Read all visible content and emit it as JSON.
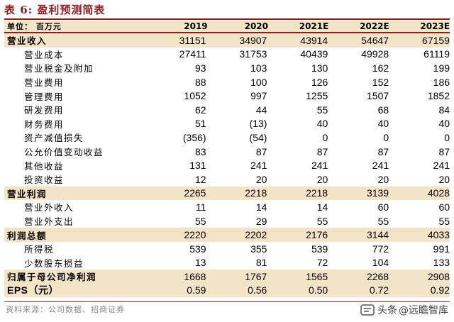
{
  "title": "表 6:  盈利预测简表",
  "header": {
    "unit_label": "单位：  百万元",
    "years": [
      "2019",
      "2020",
      "2021E",
      "2022E",
      "2023E"
    ]
  },
  "rows": [
    {
      "label": "营业收入",
      "type": "main",
      "highlight": true,
      "values": [
        "31151",
        "34907",
        "43914",
        "54647",
        "67159"
      ]
    },
    {
      "label": "营业成本",
      "type": "sub",
      "highlight": false,
      "values": [
        "27411",
        "31753",
        "40439",
        "49928",
        "61119"
      ]
    },
    {
      "label": "营业税金及附加",
      "type": "sub",
      "highlight": false,
      "values": [
        "93",
        "103",
        "130",
        "162",
        "199"
      ]
    },
    {
      "label": "营业费用",
      "type": "sub",
      "highlight": false,
      "values": [
        "88",
        "100",
        "126",
        "152",
        "186"
      ]
    },
    {
      "label": "管理费用",
      "type": "sub",
      "highlight": false,
      "values": [
        "1052",
        "997",
        "1255",
        "1507",
        "1852"
      ]
    },
    {
      "label": "研发费用",
      "type": "sub",
      "highlight": false,
      "values": [
        "62",
        "44",
        "55",
        "68",
        "84"
      ]
    },
    {
      "label": "财务费用",
      "type": "sub",
      "highlight": false,
      "values": [
        "51",
        "(13)",
        "40",
        "40",
        "40"
      ]
    },
    {
      "label": "资产减值损失",
      "type": "sub",
      "highlight": false,
      "values": [
        "(356)",
        "(54)",
        "0",
        "0",
        "0"
      ]
    },
    {
      "label": "公允价值变动收益",
      "type": "sub",
      "highlight": false,
      "values": [
        "83",
        "87",
        "87",
        "87",
        "87"
      ]
    },
    {
      "label": "其他收益",
      "type": "sub",
      "highlight": false,
      "values": [
        "131",
        "241",
        "241",
        "241",
        "241"
      ]
    },
    {
      "label": "投资收益",
      "type": "sub",
      "highlight": false,
      "values": [
        "12",
        "20",
        "20",
        "20",
        "20"
      ]
    },
    {
      "label": "营业利润",
      "type": "main",
      "highlight": true,
      "values": [
        "2265",
        "2218",
        "2218",
        "3139",
        "4028"
      ]
    },
    {
      "label": "营业外收入",
      "type": "sub",
      "highlight": false,
      "values": [
        "11",
        "14",
        "14",
        "60",
        "60"
      ]
    },
    {
      "label": "营业外支出",
      "type": "sub",
      "highlight": false,
      "values": [
        "55",
        "29",
        "55",
        "55",
        "55"
      ]
    },
    {
      "label": "利润总额",
      "type": "main",
      "highlight": true,
      "values": [
        "2220",
        "2202",
        "2176",
        "3144",
        "4033"
      ]
    },
    {
      "label": "所得税",
      "type": "sub",
      "highlight": false,
      "values": [
        "539",
        "355",
        "539",
        "772",
        "991"
      ]
    },
    {
      "label": "少数股东损益",
      "type": "sub",
      "highlight": false,
      "values": [
        "13",
        "81",
        "72",
        "104",
        "133"
      ]
    },
    {
      "label": "归属于母公司净利润",
      "type": "main",
      "highlight": true,
      "values": [
        "1668",
        "1767",
        "1565",
        "2268",
        "2908"
      ]
    },
    {
      "label": "EPS（元）",
      "type": "main",
      "highlight": true,
      "eps": true,
      "values": [
        "0.59",
        "0.56",
        "0.50",
        "0.72",
        "0.92"
      ]
    }
  ],
  "source": "资料来源：公司数据、招商证券",
  "watermark": {
    "platform": "头条",
    "account": "@远瞻智库"
  },
  "colors": {
    "accent": "#8c1d23",
    "highlight": "#f3e4c8"
  }
}
